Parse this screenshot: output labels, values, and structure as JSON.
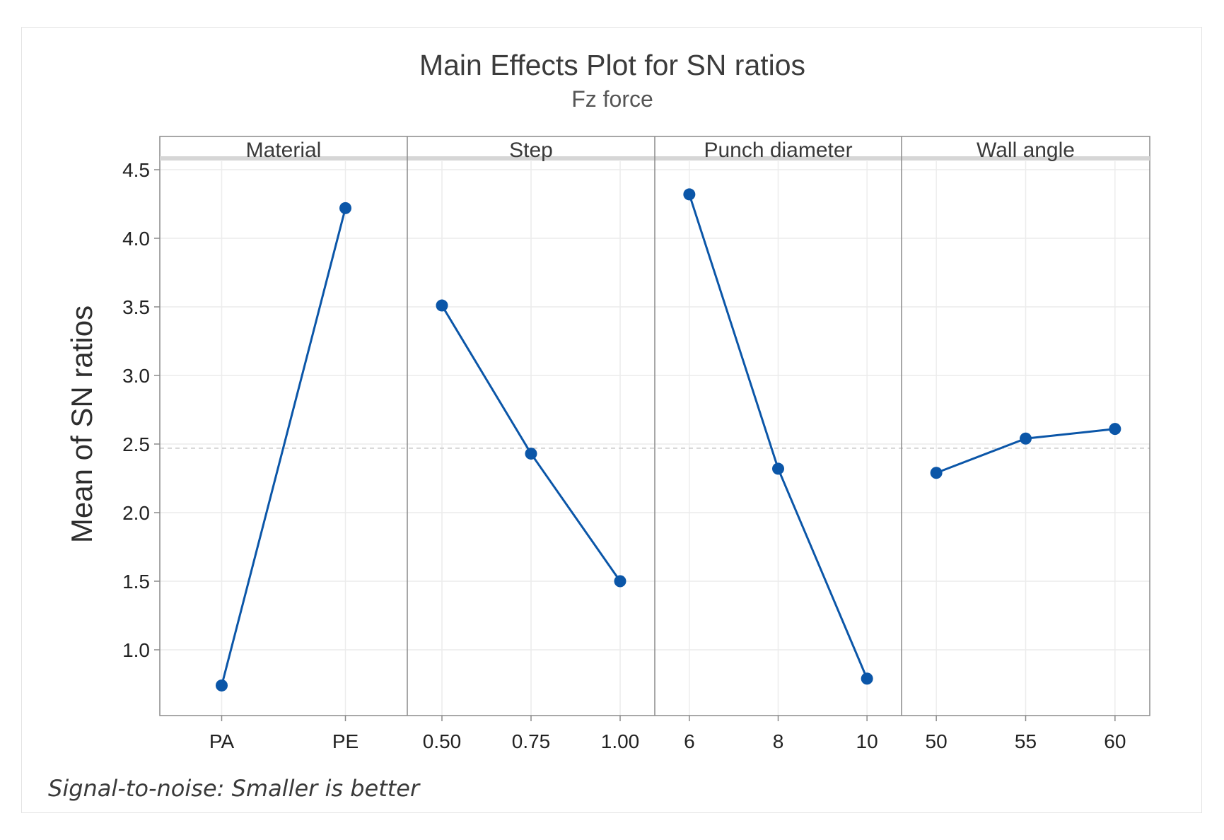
{
  "chart_data": {
    "type": "line",
    "title": "Main Effects Plot for SN ratios",
    "subtitle": "Fz force",
    "ylabel": "Mean of SN ratios",
    "ylim": [
      0.5,
      4.6
    ],
    "yticks": [
      "1.0",
      "1.5",
      "2.0",
      "2.5",
      "3.0",
      "3.5",
      "4.0",
      "4.5"
    ],
    "reference_mean": 2.47,
    "footnote": "Signal-to-noise: Smaller is better",
    "line_color": "#0b56a8",
    "panels": [
      {
        "factor": "Material",
        "levels": [
          "PA",
          "PE"
        ],
        "values": [
          0.74,
          4.22
        ]
      },
      {
        "factor": "Step",
        "levels": [
          "0.50",
          "0.75",
          "1.00"
        ],
        "values": [
          3.51,
          2.43,
          1.5
        ]
      },
      {
        "factor": "Punch diameter",
        "levels": [
          "6",
          "8",
          "10"
        ],
        "values": [
          4.32,
          2.32,
          0.79
        ]
      },
      {
        "factor": "Wall angle",
        "levels": [
          "50",
          "55",
          "60"
        ],
        "values": [
          2.29,
          2.54,
          2.61
        ]
      }
    ]
  }
}
